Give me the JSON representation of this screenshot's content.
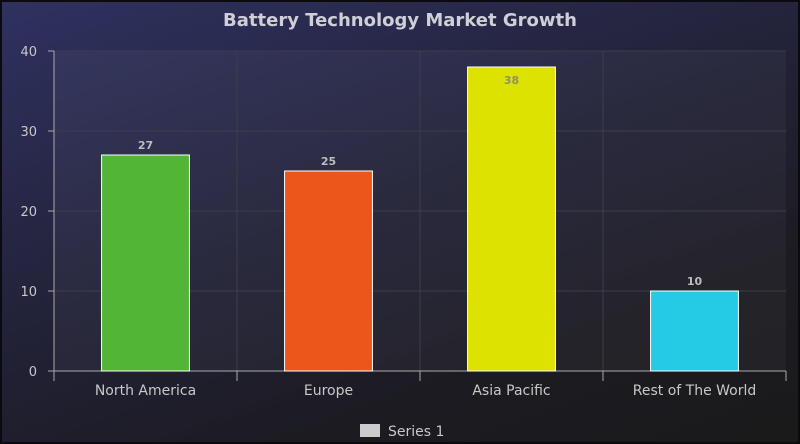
{
  "chart_data": {
    "type": "bar",
    "title": "Battery Technology Market Growth",
    "categories": [
      "North America",
      "Europe",
      "Asia Pacific",
      "Rest of The World"
    ],
    "series": [
      {
        "name": "Series 1",
        "values": [
          27,
          25,
          38,
          10
        ]
      }
    ],
    "bar_colors": [
      "#52b536",
      "#ec561b",
      "#dee200",
      "#24cbe5"
    ],
    "ylim": [
      0,
      40
    ],
    "yticks": [
      0,
      10,
      20,
      30,
      40
    ],
    "grid": true,
    "legend_position": "bottom-center",
    "legend_color": "#cccccc"
  }
}
